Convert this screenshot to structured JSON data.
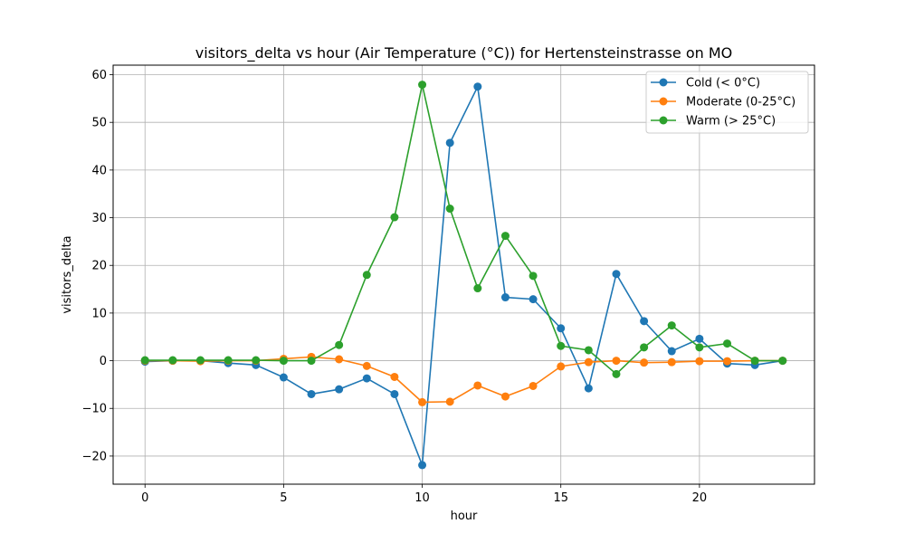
{
  "chart_data": {
    "type": "line",
    "title": "visitors_delta vs hour (Air Temperature (°C)) for Hertensteinstrasse on MO",
    "xlabel": "hour",
    "ylabel": "visitors_delta",
    "xlim": [
      -1.15,
      24.15
    ],
    "ylim": [
      -25.9,
      62.0
    ],
    "xticks": [
      0,
      5,
      10,
      15,
      20
    ],
    "yticks": [
      -20,
      -10,
      0,
      10,
      20,
      30,
      40,
      50,
      60
    ],
    "ytick_labels": [
      "−20",
      "−10",
      "0",
      "10",
      "20",
      "30",
      "40",
      "50",
      "60"
    ],
    "grid": true,
    "legend_position": "top-right",
    "x": [
      0,
      1,
      2,
      3,
      4,
      5,
      6,
      7,
      8,
      9,
      10,
      11,
      12,
      13,
      14,
      15,
      16,
      17,
      18,
      19,
      20,
      21,
      22,
      23
    ],
    "series": [
      {
        "name": "Cold (< 0°C)",
        "color": "#1f77b4",
        "values": [
          -0.2,
          0.0,
          0.0,
          -0.5,
          -0.9,
          -3.5,
          -7.0,
          -6.0,
          -3.7,
          -7.0,
          -21.9,
          45.7,
          57.5,
          13.3,
          12.9,
          6.8,
          -5.8,
          18.2,
          8.3,
          2.0,
          4.6,
          -0.6,
          -0.9,
          0.0
        ]
      },
      {
        "name": "Moderate (0-25°C)",
        "color": "#ff7f0e",
        "values": [
          0.0,
          0.0,
          -0.1,
          0.0,
          0.0,
          0.4,
          0.8,
          0.3,
          -1.1,
          -3.4,
          -8.7,
          -8.6,
          -5.2,
          -7.5,
          -5.3,
          -1.2,
          -0.3,
          0.0,
          -0.4,
          -0.3,
          -0.1,
          -0.1,
          0.0,
          0.0
        ]
      },
      {
        "name": "Warm (> 25°C)",
        "color": "#2ca02c",
        "values": [
          0.1,
          0.1,
          0.1,
          0.1,
          0.1,
          0.0,
          0.0,
          3.3,
          18.0,
          30.1,
          57.9,
          31.9,
          15.2,
          26.2,
          17.8,
          3.1,
          2.2,
          -2.8,
          2.8,
          7.4,
          2.8,
          3.6,
          0.0,
          0.0
        ]
      }
    ]
  }
}
